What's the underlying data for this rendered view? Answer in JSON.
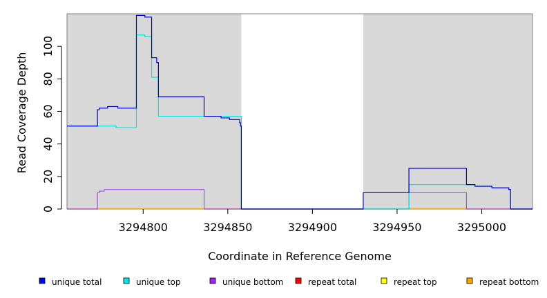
{
  "chart_data": {
    "type": "line",
    "xlabel": "Coordinate in Reference Genome",
    "ylabel": "Read Coverage Depth",
    "xlim": [
      3294755,
      3295030
    ],
    "ylim": [
      0,
      120
    ],
    "x_ticks": [
      3294800,
      3294850,
      3294900,
      3294950,
      3295000
    ],
    "y_ticks": [
      0,
      20,
      40,
      60,
      80,
      100
    ],
    "shaded_regions": [
      [
        3294755,
        3294858
      ],
      [
        3294930,
        3295030
      ]
    ],
    "background_color": "#d8d8d8",
    "legend_position": "bottom",
    "series": [
      {
        "name": "unique total",
        "color": "#0000cc",
        "step_x": [
          3294755,
          3294773,
          3294774,
          3294776,
          3294779,
          3294785,
          3294796,
          3294801,
          3294805,
          3294808,
          3294809,
          3294836,
          3294846,
          3294851,
          3294857,
          3294857.5,
          3294858,
          3294930,
          3294957,
          3294991,
          3294996,
          3295006,
          3295016,
          3295017,
          3295030
        ],
        "step_y": [
          51,
          61,
          62,
          62,
          63,
          62,
          119,
          118,
          93,
          90,
          69,
          57,
          56,
          55,
          53,
          51,
          0,
          10,
          25,
          15,
          14,
          13,
          12,
          0,
          0
        ]
      },
      {
        "name": "unique top",
        "color": "#00e5e5",
        "step_x": [
          3294755,
          3294773,
          3294784,
          3294796,
          3294801,
          3294805,
          3294809,
          3294836,
          3294858,
          3294930,
          3294957,
          3294991,
          3294996,
          3295006,
          3295016,
          3295017,
          3295030
        ],
        "step_y": [
          51,
          51,
          50,
          107,
          106,
          81,
          57,
          57,
          0,
          0,
          15,
          15,
          14,
          13,
          12,
          0,
          0
        ]
      },
      {
        "name": "unique bottom",
        "color": "#a050f0",
        "step_x": [
          3294755,
          3294773,
          3294774,
          3294777,
          3294836,
          3294930,
          3294957,
          3294991,
          3295030
        ],
        "step_y": [
          0,
          10,
          11,
          12,
          0,
          0,
          10,
          0,
          0
        ]
      },
      {
        "name": "repeat total",
        "color": "#ff0000",
        "step_x": [
          3294755,
          3295030
        ],
        "step_y": [
          0,
          0
        ]
      },
      {
        "name": "repeat top",
        "color": "#ffff00",
        "step_x": [
          3294755,
          3295030
        ],
        "step_y": [
          0,
          0
        ]
      },
      {
        "name": "repeat bottom",
        "color": "#ffa500",
        "step_x": [
          3294755,
          3295030
        ],
        "step_y": [
          0,
          0
        ]
      }
    ],
    "legend": [
      {
        "label": "unique total",
        "color": "#0000ff"
      },
      {
        "label": "unique top",
        "color": "#00e5ee"
      },
      {
        "label": "unique bottom",
        "color": "#a020f0"
      },
      {
        "label": "repeat total",
        "color": "#ff0000"
      },
      {
        "label": "repeat top",
        "color": "#ffff00"
      },
      {
        "label": "repeat bottom",
        "color": "#ffa500"
      }
    ]
  }
}
